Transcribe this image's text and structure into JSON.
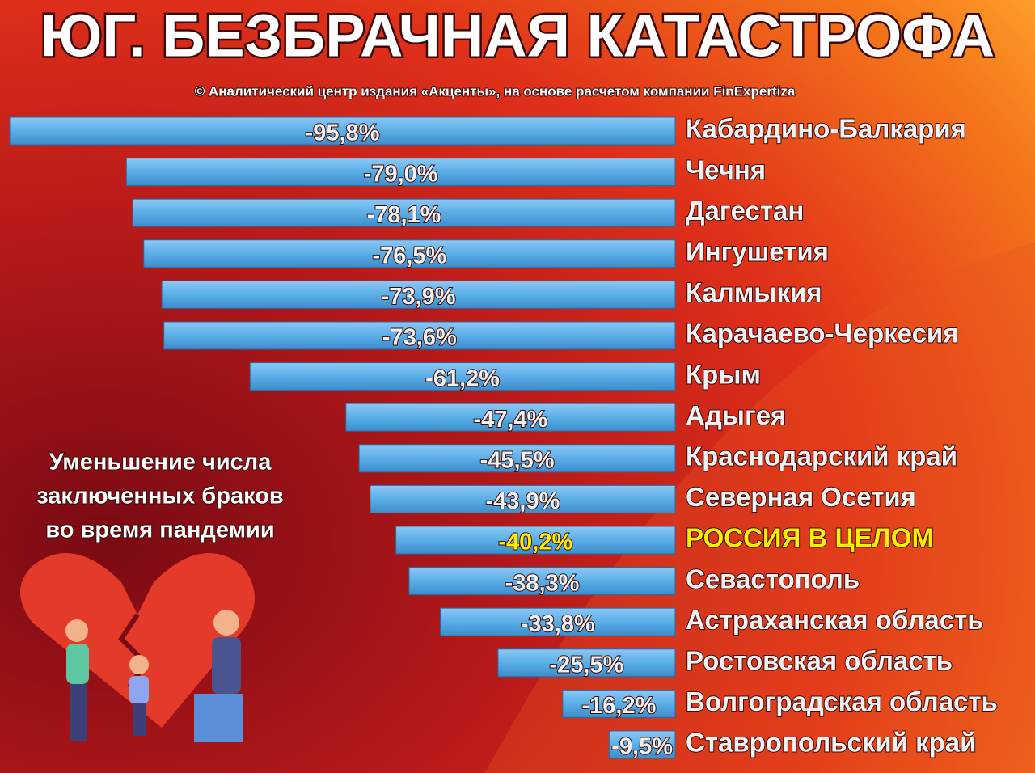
{
  "chart_data": {
    "type": "bar",
    "orientation": "horizontal",
    "title": "ЮГ.  БЕЗБРАЧНАЯ  КАТАСТРОФА",
    "subtitle": "© Аналитический  центр  издания  «Акценты»,  на основе расчетом компании FinExpertiza",
    "annotation": [
      "Уменьшение числа",
      "заключенных браков",
      "во время пандемии"
    ],
    "categories": [
      "Кабардино-Балкария",
      "Чечня",
      "Дагестан",
      "Ингушетия",
      "Калмыкия",
      "Карачаево-Черкесия",
      "Крым",
      "Адыгея",
      "Краснодарский край",
      "Северная Осетия",
      "РОССИЯ  В  ЦЕЛОМ",
      "Севастополь",
      "Астраханская область",
      "Ростовская область",
      "Волгоградская область",
      "Ставропольский край"
    ],
    "values": [
      -95.8,
      -79.0,
      -78.1,
      -76.5,
      -73.9,
      -73.6,
      -61.2,
      -47.4,
      -45.5,
      -43.9,
      -40.2,
      -38.3,
      -33.8,
      -25.5,
      -16.2,
      -9.5
    ],
    "value_labels": [
      "-95,8%",
      "-79,0%",
      "-78,1%",
      "-76,5%",
      "-73,9%",
      "-73,6%",
      "-61,2%",
      "-47,4%",
      "-45,5%",
      "-43,9%",
      "-40,2%",
      "-38,3%",
      "-33,8%",
      "-25,5%",
      "-16,2%",
      "-9,5%"
    ],
    "color": "#5aaee6",
    "label_colors": [
      "#f2f2f2",
      "#f2f2f2",
      "#f2f2f2",
      "#f2f2f2",
      "#f2f2f2",
      "#f2f2f2",
      "#f2f2f2",
      "#f2f2f2",
      "#f2f2f2",
      "#f2f2f2",
      "#ffee00",
      "#f2f2f2",
      "#f2f2f2",
      "#f2f2f2",
      "#f2f2f2",
      "#f2f2f2"
    ]
  }
}
